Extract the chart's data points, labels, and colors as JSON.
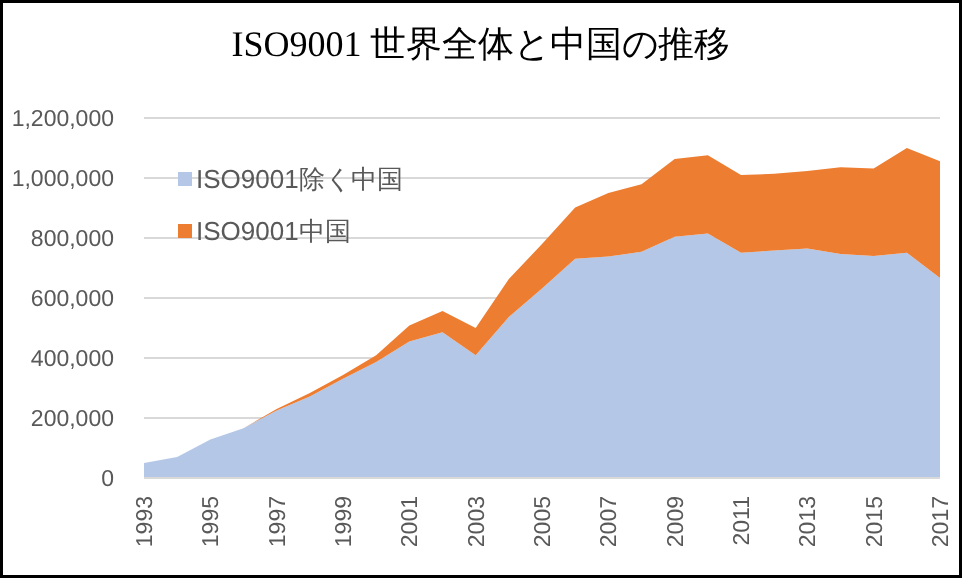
{
  "chart_data": {
    "type": "area",
    "title": "ISO9001  世界全体と中国の推移",
    "stacked": true,
    "grid": "y",
    "legend": "top left",
    "x": [
      1993,
      1994,
      1995,
      1996,
      1997,
      1998,
      1999,
      2000,
      2001,
      2002,
      2003,
      2004,
      2005,
      2006,
      2007,
      2008,
      2009,
      2010,
      2011,
      2012,
      2013,
      2014,
      2015,
      2016,
      2017
    ],
    "xlim": [
      1993,
      2017
    ],
    "xticks": [
      1993,
      1995,
      1997,
      1999,
      2001,
      2003,
      2005,
      2007,
      2009,
      2011,
      2013,
      2015,
      2017
    ],
    "ylim": [
      0,
      1200000
    ],
    "yticks": [
      0,
      {
        "value": 200000,
        "label": "200,000"
      },
      {
        "value": 400000,
        "label": "400,000"
      },
      {
        "value": 600000,
        "label": "600,000"
      },
      {
        "value": 800000,
        "label": "800,000"
      },
      {
        "value": 1000000,
        "label": "1,000,000"
      },
      {
        "value": 1200000,
        "label": "1,200,000"
      }
    ],
    "series": [
      {
        "name": "ISO9001除く中国",
        "color": "#b4c7e7",
        "values": [
          50000,
          70000,
          128000,
          166000,
          225000,
          272000,
          331000,
          387000,
          455000,
          486000,
          409000,
          537000,
          632000,
          731000,
          738000,
          754000,
          804000,
          815000,
          751000,
          758000,
          765000,
          747000,
          740000,
          751000,
          667000
        ]
      },
      {
        "name": "ISO9001中国",
        "color": "#ed7d31",
        "values": [
          0,
          0,
          0,
          0,
          5000,
          11000,
          12000,
          22000,
          53000,
          71000,
          91000,
          126000,
          148000,
          171000,
          212000,
          225000,
          259000,
          261000,
          259000,
          256000,
          258000,
          289000,
          292000,
          349000,
          389000
        ]
      }
    ]
  }
}
